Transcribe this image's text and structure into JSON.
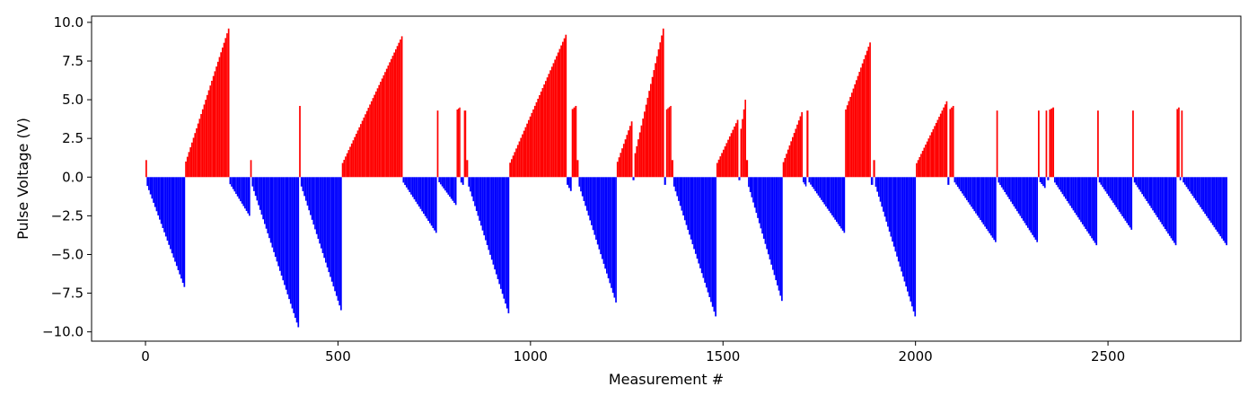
{
  "chart_data": {
    "type": "bar",
    "title": "",
    "xlabel": "Measurement #",
    "ylabel": "Pulse Voltage (V)",
    "xlim": [
      -140,
      2845
    ],
    "ylim": [
      -10.6,
      10.4
    ],
    "grid": false,
    "colors": {
      "positive": "#ff0000",
      "negative": "#0000ff",
      "axes": "#000000",
      "background": "#ffffff"
    },
    "x_ticks": [
      {
        "value": 0,
        "label": "0"
      },
      {
        "value": 500,
        "label": "500"
      },
      {
        "value": 1000,
        "label": "1000"
      },
      {
        "value": 1500,
        "label": "1500"
      },
      {
        "value": 2000,
        "label": "2000"
      },
      {
        "value": 2500,
        "label": "2500"
      }
    ],
    "y_ticks": [
      {
        "value": 10.0,
        "label": "10.0"
      },
      {
        "value": 7.5,
        "label": "7.5"
      },
      {
        "value": 5.0,
        "label": "5.0"
      },
      {
        "value": 2.5,
        "label": "2.5"
      },
      {
        "value": 0.0,
        "label": "0.0"
      },
      {
        "value": -2.5,
        "label": "−2.5"
      },
      {
        "value": -5.0,
        "label": "−5.0"
      },
      {
        "value": -7.5,
        "label": "−7.5"
      },
      {
        "value": -10.0,
        "label": "−10.0"
      }
    ],
    "series_note": "Alternating SET (positive, red) and RESET (negative, blue) pulse ramps; each segment is a linear ramp from start to end voltage over the listed measurement index range.",
    "segments": [
      {
        "x0": 0,
        "x1": 3,
        "v0": 1.1,
        "v1": 1.1
      },
      {
        "x0": 3,
        "x1": 103,
        "v0": -0.3,
        "v1": -7.1
      },
      {
        "x0": 103,
        "x1": 218,
        "v0": 0.7,
        "v1": 9.6
      },
      {
        "x0": 218,
        "x1": 272,
        "v0": -0.3,
        "v1": -2.5
      },
      {
        "x0": 272,
        "x1": 276,
        "v0": 1.1,
        "v1": 1.1
      },
      {
        "x0": 276,
        "x1": 399,
        "v0": -0.3,
        "v1": -9.7
      },
      {
        "x0": 399,
        "x1": 403,
        "v0": 4.6,
        "v1": 4.6
      },
      {
        "x0": 403,
        "x1": 510,
        "v0": -0.3,
        "v1": -8.6
      },
      {
        "x0": 510,
        "x1": 668,
        "v0": 0.7,
        "v1": 9.1
      },
      {
        "x0": 668,
        "x1": 757,
        "v0": -0.2,
        "v1": -3.6
      },
      {
        "x0": 757,
        "x1": 761,
        "v0": 4.3,
        "v1": 4.3
      },
      {
        "x0": 761,
        "x1": 808,
        "v0": -0.2,
        "v1": -1.8
      },
      {
        "x0": 808,
        "x1": 818,
        "v0": 4.3,
        "v1": 4.5
      },
      {
        "x0": 818,
        "x1": 827,
        "v0": -0.2,
        "v1": -0.5
      },
      {
        "x0": 827,
        "x1": 833,
        "v0": 4.3,
        "v1": 4.3
      },
      {
        "x0": 833,
        "x1": 838,
        "v0": 1.1,
        "v1": 1.1
      },
      {
        "x0": 838,
        "x1": 945,
        "v0": -0.3,
        "v1": -8.8
      },
      {
        "x0": 945,
        "x1": 1094,
        "v0": 0.7,
        "v1": 9.2
      },
      {
        "x0": 1094,
        "x1": 1107,
        "v0": -0.3,
        "v1": -0.9
      },
      {
        "x0": 1107,
        "x1": 1120,
        "v0": 4.3,
        "v1": 4.6
      },
      {
        "x0": 1120,
        "x1": 1125,
        "v0": 1.1,
        "v1": 1.1
      },
      {
        "x0": 1125,
        "x1": 1224,
        "v0": -0.3,
        "v1": -8.1
      },
      {
        "x0": 1224,
        "x1": 1265,
        "v0": 0.7,
        "v1": 3.6
      },
      {
        "x0": 1265,
        "x1": 1270,
        "v0": -0.2,
        "v1": -0.2
      },
      {
        "x0": 1270,
        "x1": 1347,
        "v0": 1.1,
        "v1": 9.6
      },
      {
        "x0": 1347,
        "x1": 1352,
        "v0": -0.5,
        "v1": -0.5
      },
      {
        "x0": 1352,
        "x1": 1366,
        "v0": 4.3,
        "v1": 4.6
      },
      {
        "x0": 1366,
        "x1": 1371,
        "v0": 1.1,
        "v1": 1.1
      },
      {
        "x0": 1371,
        "x1": 1483,
        "v0": -0.3,
        "v1": -9.0
      },
      {
        "x0": 1483,
        "x1": 1540,
        "v0": 0.7,
        "v1": 3.7
      },
      {
        "x0": 1540,
        "x1": 1545,
        "v0": -0.2,
        "v1": -0.2
      },
      {
        "x0": 1545,
        "x1": 1560,
        "v0": 2.5,
        "v1": 5.0
      },
      {
        "x0": 1560,
        "x1": 1565,
        "v0": 1.1,
        "v1": 1.1
      },
      {
        "x0": 1565,
        "x1": 1655,
        "v0": -0.3,
        "v1": -8.0
      },
      {
        "x0": 1655,
        "x1": 1707,
        "v0": 0.7,
        "v1": 4.2
      },
      {
        "x0": 1707,
        "x1": 1717,
        "v0": -0.2,
        "v1": -0.6
      },
      {
        "x0": 1717,
        "x1": 1722,
        "v0": 4.3,
        "v1": 4.3
      },
      {
        "x0": 1722,
        "x1": 1817,
        "v0": -0.2,
        "v1": -3.6
      },
      {
        "x0": 1817,
        "x1": 1884,
        "v0": 4.1,
        "v1": 8.7
      },
      {
        "x0": 1884,
        "x1": 1890,
        "v0": -0.5,
        "v1": -0.5
      },
      {
        "x0": 1890,
        "x1": 1895,
        "v0": 1.1,
        "v1": 1.1
      },
      {
        "x0": 1895,
        "x1": 2001,
        "v0": -0.3,
        "v1": -9.0
      },
      {
        "x0": 2001,
        "x1": 2083,
        "v0": 0.7,
        "v1": 4.9
      },
      {
        "x0": 2083,
        "x1": 2088,
        "v0": -0.2,
        "v1": -0.5
      },
      {
        "x0": 2088,
        "x1": 2100,
        "v0": 4.3,
        "v1": 4.6
      },
      {
        "x0": 2100,
        "x1": 2210,
        "v0": -0.2,
        "v1": -4.2
      },
      {
        "x0": 2210,
        "x1": 2214,
        "v0": 4.3,
        "v1": 4.3
      },
      {
        "x0": 2214,
        "x1": 2318,
        "v0": -0.2,
        "v1": -4.2
      },
      {
        "x0": 2318,
        "x1": 2322,
        "v0": 4.3,
        "v1": 4.3
      },
      {
        "x0": 2322,
        "x1": 2338,
        "v0": -0.2,
        "v1": -0.7
      },
      {
        "x0": 2338,
        "x1": 2342,
        "v0": 4.3,
        "v1": 4.3
      },
      {
        "x0": 2342,
        "x1": 2347,
        "v0": -0.2,
        "v1": -0.2
      },
      {
        "x0": 2347,
        "x1": 2360,
        "v0": 4.3,
        "v1": 4.5
      },
      {
        "x0": 2360,
        "x1": 2472,
        "v0": -0.2,
        "v1": -4.4
      },
      {
        "x0": 2472,
        "x1": 2476,
        "v0": 4.3,
        "v1": 4.3
      },
      {
        "x0": 2476,
        "x1": 2563,
        "v0": -0.2,
        "v1": -3.4
      },
      {
        "x0": 2563,
        "x1": 2567,
        "v0": 4.3,
        "v1": 4.3
      },
      {
        "x0": 2567,
        "x1": 2678,
        "v0": -0.2,
        "v1": -4.4
      },
      {
        "x0": 2678,
        "x1": 2686,
        "v0": 4.3,
        "v1": 4.5
      },
      {
        "x0": 2686,
        "x1": 2690,
        "v0": -0.2,
        "v1": -0.2
      },
      {
        "x0": 2690,
        "x1": 2694,
        "v0": 4.3,
        "v1": 4.3
      },
      {
        "x0": 2694,
        "x1": 2810,
        "v0": -0.2,
        "v1": -4.4
      }
    ]
  }
}
